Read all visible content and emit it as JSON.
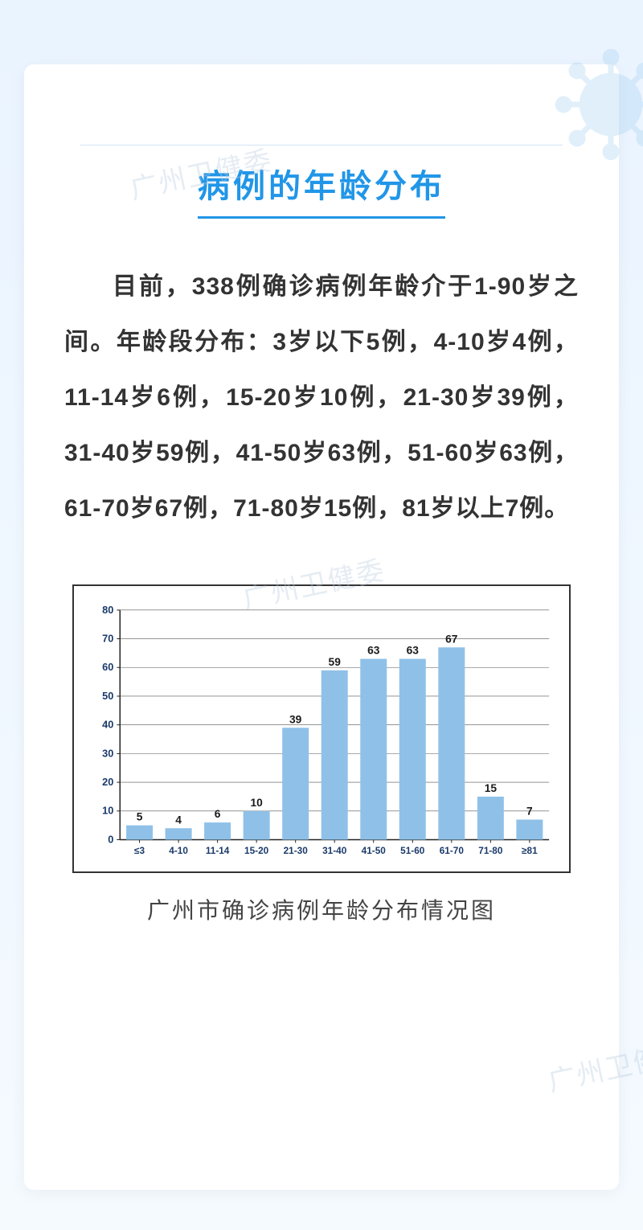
{
  "title": "病例的年龄分布",
  "body": "目前，338例确诊病例年龄介于1-90岁之间。年龄段分布：3岁以下5例，4-10岁4例，11-14岁6例，15-20岁10例，21-30岁39例，31-40岁59例，41-50岁63例，51-60岁63例，61-70岁67例，71-80岁15例，81岁以上7例。",
  "watermark_text": "广州卫健委",
  "chart": {
    "type": "bar",
    "caption": "广州市确诊病例年龄分布情况图",
    "categories": [
      "≤3",
      "4-10",
      "11-14",
      "15-20",
      "21-30",
      "31-40",
      "41-50",
      "51-60",
      "61-70",
      "71-80",
      "≥81"
    ],
    "values": [
      5,
      4,
      6,
      10,
      39,
      59,
      63,
      63,
      67,
      15,
      7
    ],
    "bar_color": "#8fc1e8",
    "value_label_color": "#1a1a1a",
    "value_label_fontsize": 14,
    "value_label_fontweight": "700",
    "axis_color": "#222222",
    "grid_color": "#555555",
    "grid_dash": "1 0",
    "ylim": [
      0,
      80
    ],
    "ytick_step": 10,
    "ytick_color": "#1a3a6a",
    "ytick_fontsize": 13,
    "ytick_fontweight": "700",
    "xtick_color": "#1a3a6a",
    "xtick_fontsize": 12,
    "xtick_fontweight": "700",
    "bar_width_ratio": 0.68,
    "plot_background": "#ffffff"
  },
  "colors": {
    "page_bg_top": "#eaf4ff",
    "page_bg_bottom": "#f5faff",
    "card_bg": "#ffffff",
    "title_color": "#2196e8",
    "text_color": "#333333",
    "virus_color": "#a9d3f2"
  }
}
